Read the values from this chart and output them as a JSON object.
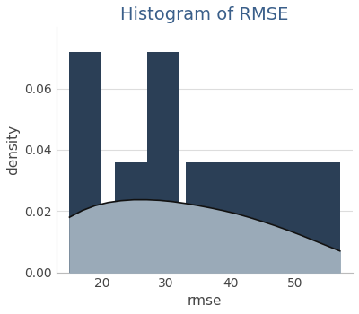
{
  "title": "Histogram of RMSE",
  "xlabel": "rmse",
  "ylabel": "density",
  "bar_left_edges": [
    15,
    22,
    27,
    33,
    42,
    50
  ],
  "bar_right_edges": [
    20,
    27,
    32,
    42,
    50,
    57
  ],
  "bar_heights": [
    0.072,
    0.036,
    0.072,
    0.036,
    0.036,
    0.036
  ],
  "bar_color": "#2b3f56",
  "kde_fill_color": "#9aaab8",
  "kde_line_color": "#111111",
  "background_color": "#ffffff",
  "ylim": [
    0,
    0.08
  ],
  "xlim": [
    13,
    59
  ],
  "title_color": "#3a5f8a",
  "title_fontsize": 14,
  "label_fontsize": 11,
  "tick_fontsize": 10,
  "grid_color": "#dddddd",
  "kde_x": [
    15.0,
    17.0,
    19.0,
    21.0,
    23.0,
    25.0,
    27.0,
    29.0,
    31.0,
    33.0,
    35.0,
    37.0,
    39.0,
    41.0,
    43.0,
    45.0,
    47.0,
    49.0,
    51.0,
    53.0,
    55.0,
    57.0
  ],
  "kde_y": [
    0.018,
    0.0202,
    0.0218,
    0.0228,
    0.0234,
    0.0237,
    0.0237,
    0.0235,
    0.0231,
    0.0225,
    0.0218,
    0.021,
    0.0201,
    0.0191,
    0.0179,
    0.0166,
    0.0152,
    0.0137,
    0.0121,
    0.0104,
    0.0087,
    0.007
  ],
  "xticks": [
    20,
    30,
    40,
    50
  ],
  "yticks": [
    0.0,
    0.02,
    0.04,
    0.06
  ]
}
